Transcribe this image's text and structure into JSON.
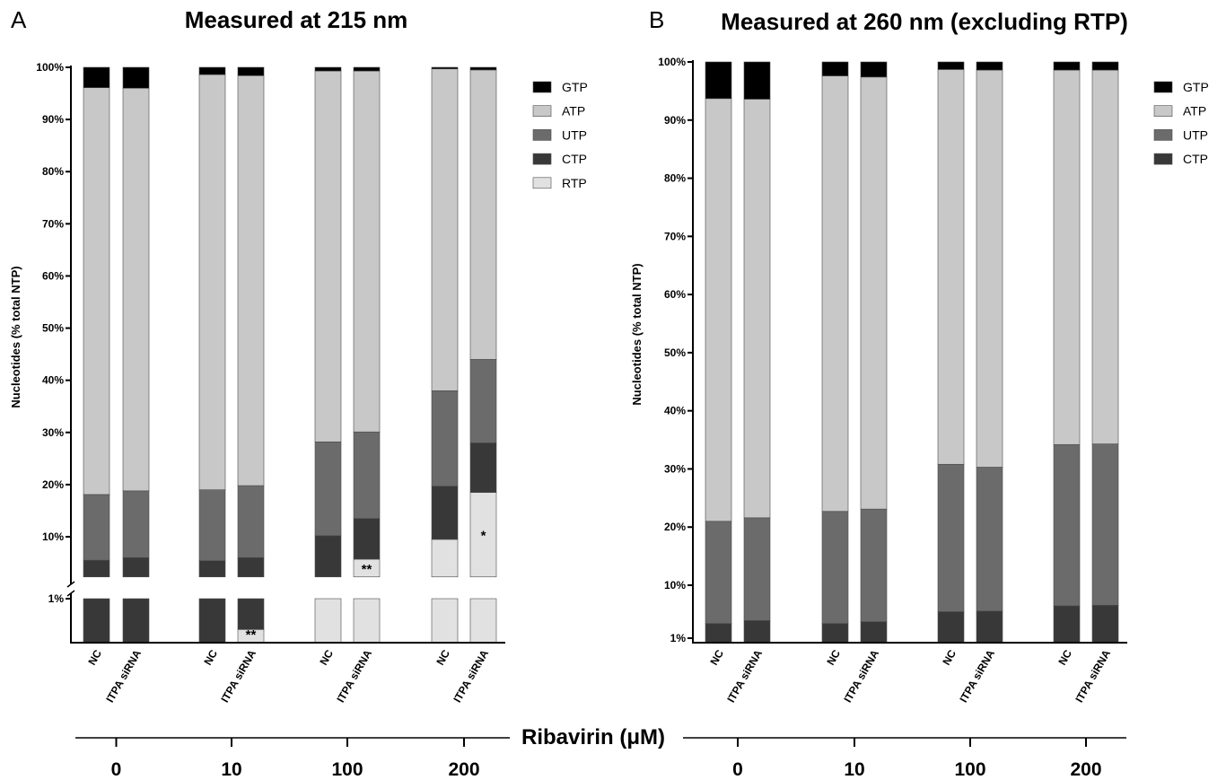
{
  "colors": {
    "GTP": "#000000",
    "ATP": "#c8c8c8",
    "UTP": "#6b6b6b",
    "CTP": "#383838",
    "RTP": "#e1e1e1",
    "edge": "#4a4a4a"
  },
  "shared": {
    "xlabel": "Ribavirin (μM)",
    "groups": [
      "0",
      "10",
      "100",
      "200"
    ]
  },
  "chart_data": [
    {
      "type": "bar",
      "stacked": true,
      "panel_label": "A",
      "title": "Measured at 215 nm",
      "ylabel": "Nucleotides (% total NTP)",
      "yticks": [
        "1%",
        "10%",
        "20%",
        "30%",
        "40%",
        "50%",
        "60%",
        "70%",
        "80%",
        "90%",
        "100%"
      ],
      "ylim": [
        0,
        100
      ],
      "broken_axis": true,
      "groups": [
        "0",
        "10",
        "100",
        "200"
      ],
      "categories": [
        "NC",
        "ITPA siRNA",
        "NC",
        "ITPA siRNA",
        "NC",
        "ITPA siRNA",
        "NC",
        "ITPA siRNA"
      ],
      "legend": [
        "GTP",
        "ATP",
        "UTP",
        "CTP",
        "RTP"
      ],
      "legend_position": "top-right",
      "series": [
        {
          "name": "RTP",
          "values": [
            0,
            0,
            0,
            0.3,
            2.3,
            5.7,
            9.5,
            18.5
          ]
        },
        {
          "name": "CTP",
          "values": [
            5.5,
            6.0,
            5.4,
            5.7,
            7.9,
            7.8,
            10.2,
            9.5
          ]
        },
        {
          "name": "UTP",
          "values": [
            12.6,
            12.8,
            13.6,
            13.8,
            18.0,
            16.6,
            18.3,
            16.0
          ]
        },
        {
          "name": "ATP",
          "values": [
            78.0,
            77.2,
            79.6,
            78.6,
            71.1,
            69.2,
            61.7,
            55.5
          ]
        },
        {
          "name": "GTP",
          "values": [
            3.9,
            4.0,
            1.4,
            1.6,
            0.7,
            0.7,
            0.3,
            0.5
          ]
        }
      ],
      "annotations": [
        {
          "category_index": 3,
          "series": "RTP",
          "text": "**"
        },
        {
          "category_index": 5,
          "series": "RTP",
          "text": "**"
        },
        {
          "category_index": 7,
          "series": "RTP",
          "text": "*"
        }
      ]
    },
    {
      "type": "bar",
      "stacked": true,
      "panel_label": "B",
      "title": "Measured at 260 nm (excluding RTP)",
      "ylabel": "Nucleotides (% total NTP)",
      "yticks": [
        "1%",
        "10%",
        "20%",
        "30%",
        "40%",
        "50%",
        "60%",
        "70%",
        "80%",
        "90%",
        "100%"
      ],
      "ylim": [
        0,
        100
      ],
      "groups": [
        "0",
        "10",
        "100",
        "200"
      ],
      "categories": [
        "NC",
        "ITPA siRNA",
        "NC",
        "ITPA siRNA",
        "NC",
        "ITPA siRNA",
        "NC",
        "ITPA siRNA"
      ],
      "legend": [
        "GTP",
        "ATP",
        "UTP",
        "CTP"
      ],
      "legend_position": "top-right",
      "series": [
        {
          "name": "CTP",
          "values": [
            3.5,
            4.0,
            3.5,
            3.8,
            5.5,
            5.6,
            6.5,
            6.6
          ]
        },
        {
          "name": "UTP",
          "values": [
            17.5,
            17.6,
            19.2,
            19.3,
            25.3,
            24.7,
            27.7,
            27.7
          ]
        },
        {
          "name": "ATP",
          "values": [
            72.7,
            72.0,
            74.9,
            74.3,
            67.9,
            68.3,
            64.4,
            64.3
          ]
        },
        {
          "name": "GTP",
          "values": [
            6.3,
            6.4,
            2.4,
            2.6,
            1.3,
            1.4,
            1.4,
            1.4
          ]
        }
      ]
    }
  ]
}
